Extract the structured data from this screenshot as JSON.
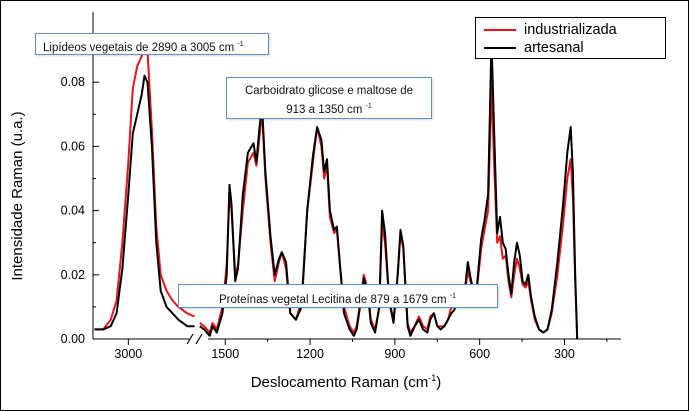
{
  "chart_data": {
    "type": "line",
    "xlabel": "Deslocamento Raman (cm",
    "xlabel_sup": "-1",
    "xlabel_end": ")",
    "ylabel": "Intensidade Raman (u.a.)",
    "ylim": [
      0,
      0.1
    ],
    "y_ticks": [
      0.0,
      0.02,
      0.04,
      0.06,
      0.08
    ],
    "y_tick_labels": [
      "0.00",
      "0.02",
      "0.04",
      "0.06",
      "0.08"
    ],
    "x_axis_reversed": true,
    "x_segment_high": {
      "xlim": [
        3120,
        2760
      ],
      "ticks": [
        3000
      ],
      "tick_labels": [
        "3000"
      ]
    },
    "x_segment_low": {
      "xlim": [
        1600,
        100
      ],
      "ticks": [
        1500,
        1200,
        900,
        600,
        300
      ],
      "tick_labels": [
        "1500",
        "1200",
        "900",
        "600",
        "300"
      ]
    },
    "legend_position": "top-right",
    "series": [
      {
        "name": "industrializada",
        "color": "#e8141b",
        "points_high": [
          [
            3115,
            0.003
          ],
          [
            3085,
            0.003
          ],
          [
            3060,
            0.006
          ],
          [
            3040,
            0.012
          ],
          [
            3020,
            0.03
          ],
          [
            3000,
            0.055
          ],
          [
            2985,
            0.078
          ],
          [
            2970,
            0.085
          ],
          [
            2955,
            0.088
          ],
          [
            2945,
            0.095
          ],
          [
            2935,
            0.09
          ],
          [
            2920,
            0.065
          ],
          [
            2905,
            0.035
          ],
          [
            2890,
            0.02
          ],
          [
            2870,
            0.015
          ],
          [
            2850,
            0.012
          ],
          [
            2830,
            0.01
          ],
          [
            2800,
            0.008
          ],
          [
            2775,
            0.007
          ]
        ],
        "points_low": [
          [
            1590,
            0.005
          ],
          [
            1575,
            0.004
          ],
          [
            1555,
            0.002
          ],
          [
            1545,
            0.005
          ],
          [
            1530,
            0.003
          ],
          [
            1510,
            0.01
          ],
          [
            1495,
            0.023
          ],
          [
            1485,
            0.046
          ],
          [
            1478,
            0.04
          ],
          [
            1465,
            0.02
          ],
          [
            1455,
            0.023
          ],
          [
            1438,
            0.04
          ],
          [
            1420,
            0.055
          ],
          [
            1400,
            0.058
          ],
          [
            1390,
            0.054
          ],
          [
            1380,
            0.062
          ],
          [
            1370,
            0.071
          ],
          [
            1358,
            0.05
          ],
          [
            1340,
            0.03
          ],
          [
            1325,
            0.018
          ],
          [
            1310,
            0.024
          ],
          [
            1300,
            0.027
          ],
          [
            1285,
            0.022
          ],
          [
            1270,
            0.008
          ],
          [
            1250,
            0.006
          ],
          [
            1230,
            0.012
          ],
          [
            1210,
            0.04
          ],
          [
            1190,
            0.055
          ],
          [
            1175,
            0.066
          ],
          [
            1160,
            0.06
          ],
          [
            1150,
            0.05
          ],
          [
            1140,
            0.054
          ],
          [
            1130,
            0.038
          ],
          [
            1115,
            0.033
          ],
          [
            1105,
            0.034
          ],
          [
            1095,
            0.024
          ],
          [
            1080,
            0.01
          ],
          [
            1060,
            0.004
          ],
          [
            1045,
            0.002
          ],
          [
            1035,
            0.004
          ],
          [
            1025,
            0.01
          ],
          [
            1010,
            0.02
          ],
          [
            995,
            0.015
          ],
          [
            985,
            0.006
          ],
          [
            970,
            0.003
          ],
          [
            955,
            0.01
          ],
          [
            945,
            0.036
          ],
          [
            935,
            0.03
          ],
          [
            920,
            0.012
          ],
          [
            905,
            0.006
          ],
          [
            890,
            0.02
          ],
          [
            880,
            0.033
          ],
          [
            870,
            0.028
          ],
          [
            855,
            0.005
          ],
          [
            845,
            0.002
          ],
          [
            830,
            0.004
          ],
          [
            815,
            0.007
          ],
          [
            800,
            0.004
          ],
          [
            785,
            0.003
          ],
          [
            775,
            0.007
          ],
          [
            762,
            0.008
          ],
          [
            750,
            0.004
          ],
          [
            738,
            0.004
          ],
          [
            725,
            0.004
          ],
          [
            712,
            0.006
          ],
          [
            700,
            0.01
          ],
          [
            690,
            0.01
          ],
          [
            680,
            0.014
          ],
          [
            668,
            0.012
          ],
          [
            655,
            0.013
          ],
          [
            642,
            0.021
          ],
          [
            632,
            0.018
          ],
          [
            620,
            0.014
          ],
          [
            610,
            0.015
          ],
          [
            595,
            0.028
          ],
          [
            583,
            0.034
          ],
          [
            570,
            0.04
          ],
          [
            558,
            0.079
          ],
          [
            548,
            0.052
          ],
          [
            538,
            0.03
          ],
          [
            528,
            0.032
          ],
          [
            518,
            0.025
          ],
          [
            508,
            0.026
          ],
          [
            498,
            0.018
          ],
          [
            488,
            0.013
          ],
          [
            478,
            0.02
          ],
          [
            468,
            0.025
          ],
          [
            458,
            0.022
          ],
          [
            448,
            0.017
          ],
          [
            438,
            0.016
          ],
          [
            428,
            0.018
          ],
          [
            418,
            0.012
          ],
          [
            405,
            0.006
          ],
          [
            390,
            0.003
          ],
          [
            375,
            0.002
          ],
          [
            360,
            0.003
          ],
          [
            345,
            0.008
          ],
          [
            325,
            0.02
          ],
          [
            305,
            0.036
          ],
          [
            290,
            0.05
          ],
          [
            278,
            0.056
          ],
          [
            270,
            0.044
          ],
          [
            262,
            0.018
          ],
          [
            255,
            0.0
          ]
        ]
      },
      {
        "name": "artesanal",
        "color": "#000000",
        "points_high": [
          [
            3115,
            0.003
          ],
          [
            3085,
            0.003
          ],
          [
            3060,
            0.004
          ],
          [
            3040,
            0.008
          ],
          [
            3020,
            0.022
          ],
          [
            3000,
            0.045
          ],
          [
            2985,
            0.064
          ],
          [
            2970,
            0.07
          ],
          [
            2955,
            0.076
          ],
          [
            2945,
            0.082
          ],
          [
            2935,
            0.08
          ],
          [
            2920,
            0.06
          ],
          [
            2905,
            0.03
          ],
          [
            2890,
            0.015
          ],
          [
            2870,
            0.01
          ],
          [
            2850,
            0.008
          ],
          [
            2830,
            0.006
          ],
          [
            2800,
            0.004
          ],
          [
            2775,
            0.004
          ]
        ],
        "points_low": [
          [
            1590,
            0.004
          ],
          [
            1575,
            0.003
          ],
          [
            1555,
            0.001
          ],
          [
            1545,
            0.004
          ],
          [
            1530,
            0.002
          ],
          [
            1510,
            0.008
          ],
          [
            1495,
            0.02
          ],
          [
            1485,
            0.048
          ],
          [
            1478,
            0.042
          ],
          [
            1465,
            0.018
          ],
          [
            1455,
            0.022
          ],
          [
            1438,
            0.045
          ],
          [
            1420,
            0.058
          ],
          [
            1400,
            0.061
          ],
          [
            1390,
            0.055
          ],
          [
            1380,
            0.065
          ],
          [
            1370,
            0.073
          ],
          [
            1358,
            0.052
          ],
          [
            1340,
            0.032
          ],
          [
            1325,
            0.02
          ],
          [
            1310,
            0.025
          ],
          [
            1300,
            0.027
          ],
          [
            1285,
            0.024
          ],
          [
            1270,
            0.008
          ],
          [
            1250,
            0.006
          ],
          [
            1230,
            0.01
          ],
          [
            1210,
            0.04
          ],
          [
            1190,
            0.057
          ],
          [
            1175,
            0.066
          ],
          [
            1160,
            0.062
          ],
          [
            1150,
            0.052
          ],
          [
            1140,
            0.056
          ],
          [
            1130,
            0.04
          ],
          [
            1115,
            0.034
          ],
          [
            1105,
            0.035
          ],
          [
            1095,
            0.024
          ],
          [
            1080,
            0.008
          ],
          [
            1060,
            0.003
          ],
          [
            1045,
            0.001
          ],
          [
            1035,
            0.003
          ],
          [
            1025,
            0.009
          ],
          [
            1010,
            0.019
          ],
          [
            995,
            0.014
          ],
          [
            985,
            0.005
          ],
          [
            970,
            0.002
          ],
          [
            955,
            0.01
          ],
          [
            945,
            0.04
          ],
          [
            935,
            0.033
          ],
          [
            920,
            0.012
          ],
          [
            905,
            0.005
          ],
          [
            890,
            0.02
          ],
          [
            880,
            0.034
          ],
          [
            870,
            0.029
          ],
          [
            855,
            0.004
          ],
          [
            845,
            0.001
          ],
          [
            830,
            0.004
          ],
          [
            815,
            0.006
          ],
          [
            800,
            0.003
          ],
          [
            785,
            0.002
          ],
          [
            775,
            0.006
          ],
          [
            762,
            0.008
          ],
          [
            750,
            0.004
          ],
          [
            738,
            0.003
          ],
          [
            725,
            0.004
          ],
          [
            712,
            0.006
          ],
          [
            700,
            0.008
          ],
          [
            690,
            0.009
          ],
          [
            680,
            0.012
          ],
          [
            668,
            0.011
          ],
          [
            655,
            0.013
          ],
          [
            642,
            0.024
          ],
          [
            632,
            0.019
          ],
          [
            620,
            0.014
          ],
          [
            610,
            0.016
          ],
          [
            595,
            0.031
          ],
          [
            583,
            0.037
          ],
          [
            570,
            0.045
          ],
          [
            558,
            0.093
          ],
          [
            548,
            0.062
          ],
          [
            538,
            0.033
          ],
          [
            528,
            0.038
          ],
          [
            518,
            0.03
          ],
          [
            508,
            0.028
          ],
          [
            498,
            0.02
          ],
          [
            488,
            0.014
          ],
          [
            478,
            0.024
          ],
          [
            468,
            0.03
          ],
          [
            458,
            0.026
          ],
          [
            448,
            0.018
          ],
          [
            438,
            0.017
          ],
          [
            428,
            0.02
          ],
          [
            418,
            0.013
          ],
          [
            405,
            0.007
          ],
          [
            390,
            0.003
          ],
          [
            375,
            0.002
          ],
          [
            360,
            0.003
          ],
          [
            345,
            0.009
          ],
          [
            325,
            0.024
          ],
          [
            305,
            0.042
          ],
          [
            290,
            0.058
          ],
          [
            278,
            0.066
          ],
          [
            270,
            0.052
          ],
          [
            262,
            0.02
          ],
          [
            255,
            0.0
          ]
        ]
      }
    ],
    "annotations": [
      {
        "id": "lipid",
        "text": "Lipídeos vegetais de 2890 a 3005 cm",
        "sup": "-1"
      },
      {
        "id": "carb",
        "line1": "Carboidrato glicose e maltose de",
        "line2": "913 a 1350 cm",
        "sup": "-1"
      },
      {
        "id": "prot",
        "text": "Proteínas vegetal Lecitina de 879 a 1679 cm",
        "sup": "-1"
      }
    ]
  }
}
